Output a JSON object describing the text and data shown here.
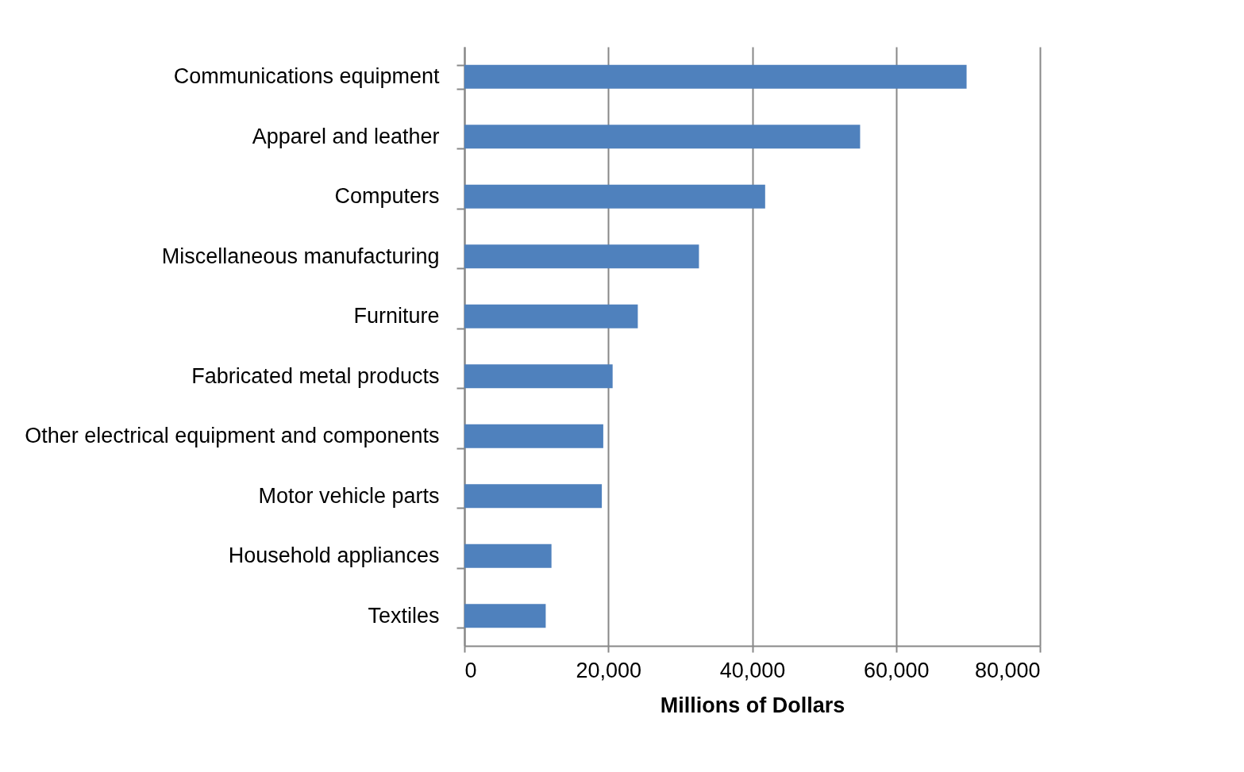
{
  "chart_data": {
    "type": "bar",
    "orientation": "horizontal",
    "categories": [
      "Communications  equipment",
      "Apparel and leather",
      "Computers",
      "Miscellaneous manufacturing",
      "Furniture",
      "Fabricated metal products",
      "Other electrical equipment and components",
      "Motor vehicle parts",
      "Household appliances",
      "Textiles"
    ],
    "values": [
      69800,
      55000,
      41800,
      32600,
      24100,
      20600,
      19300,
      19100,
      12100,
      11300
    ],
    "color": "#4f81bd",
    "xlabel": "Millions of Dollars",
    "xlim": [
      0,
      80000
    ],
    "xticks": [
      0,
      {
        "value": 20000,
        "label": "20,000"
      },
      {
        "value": 40000,
        "label": "40,000"
      },
      {
        "value": 60000,
        "label": "60,000"
      },
      {
        "value": 80000,
        "label": "80,000"
      }
    ],
    "grid": "x"
  }
}
